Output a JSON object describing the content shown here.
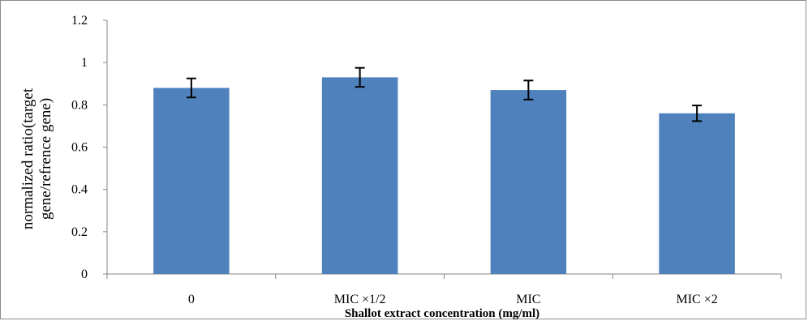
{
  "chart_data": {
    "type": "bar",
    "title": "",
    "xlabel": "Shallot extract concentration (mg/ml)",
    "ylabel_lines": [
      "normalized ratio(target",
      "gene/refrence gene)"
    ],
    "categories": [
      "0",
      "MIC ×1/2",
      "MIC",
      "MIC ×2"
    ],
    "values": [
      0.88,
      0.93,
      0.87,
      0.76
    ],
    "error": [
      0.045,
      0.045,
      0.045,
      0.037
    ],
    "ylim": [
      0,
      1.2
    ],
    "yticks": [
      "0",
      "0.2",
      "0.4",
      "0.6",
      "0.8",
      "1",
      "1.2"
    ],
    "grid": false,
    "legend": "none",
    "bar_color": "#4f81bd",
    "error_color": "#000000"
  }
}
